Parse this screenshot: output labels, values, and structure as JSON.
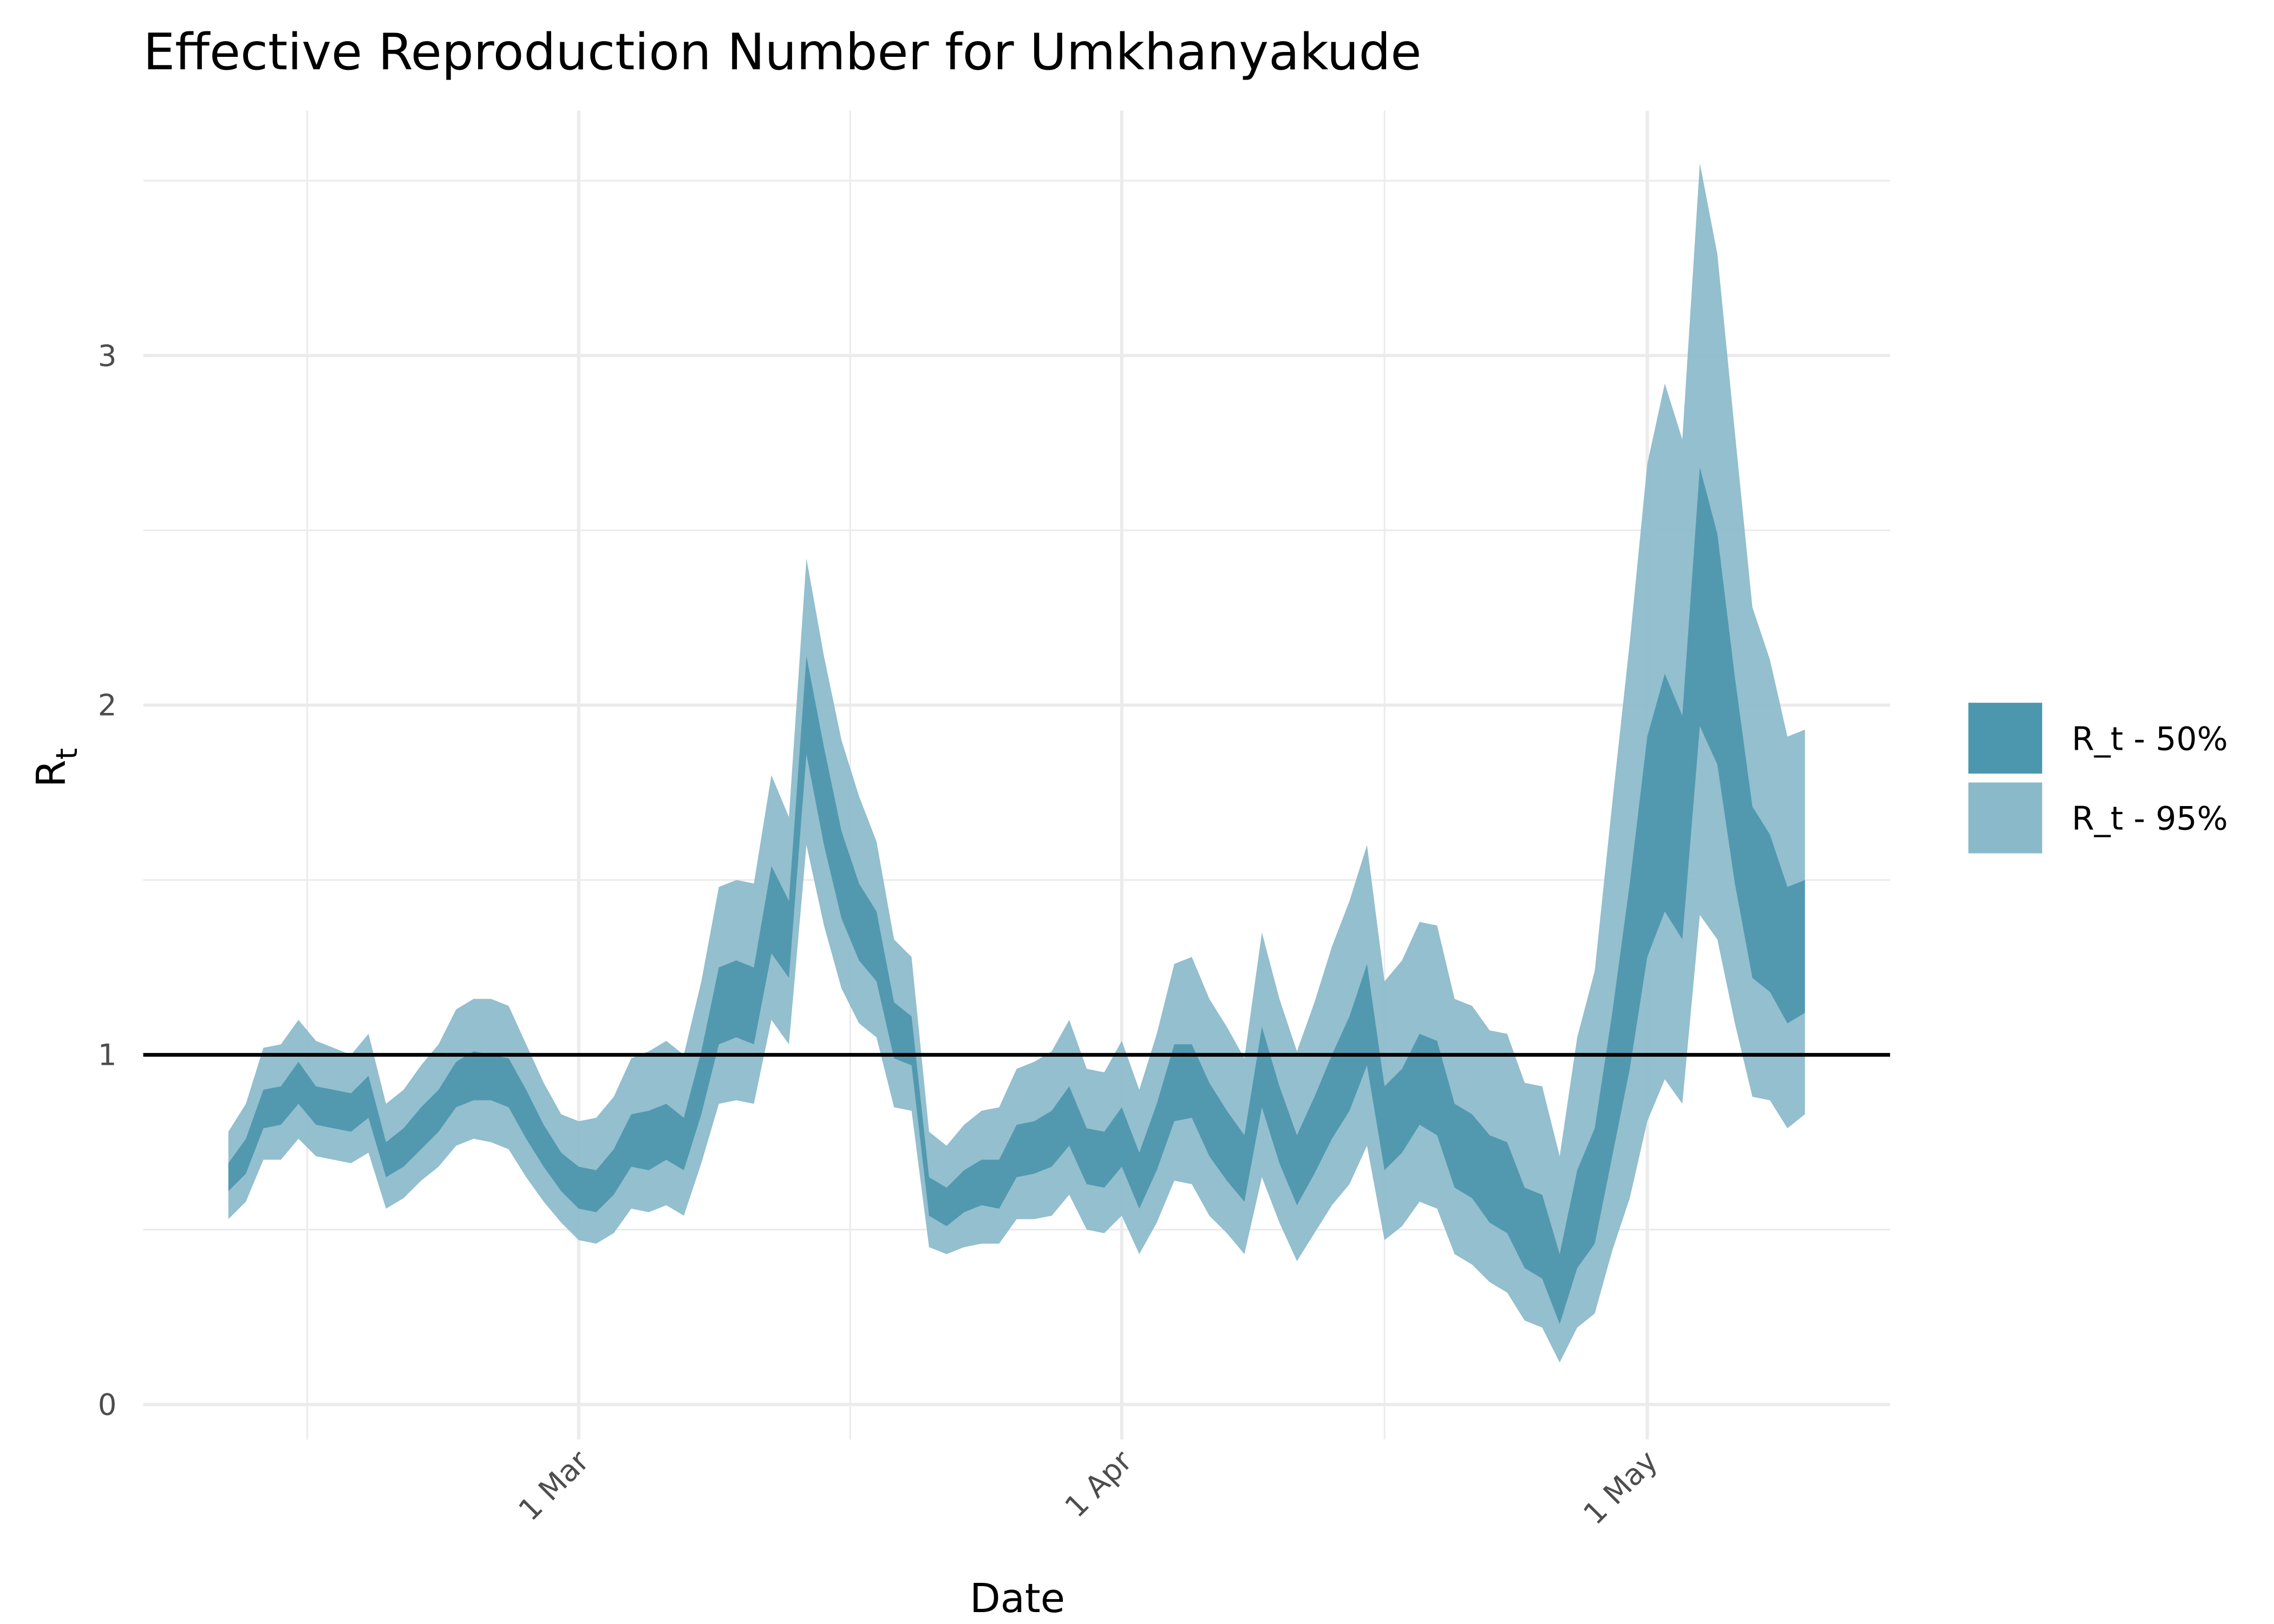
{
  "chart_data": {
    "type": "ribbon",
    "title": "Effective Reproduction Number for Umkhanyakude",
    "xlabel": "Date",
    "ylabel": "R",
    "ylabel_subscript": "t",
    "x": [
      "9 Feb",
      "10 Feb",
      "11 Feb",
      "12 Feb",
      "13 Feb",
      "14 Feb",
      "15 Feb",
      "16 Feb",
      "17 Feb",
      "18 Feb",
      "19 Feb",
      "20 Feb",
      "21 Feb",
      "22 Feb",
      "23 Feb",
      "24 Feb",
      "25 Feb",
      "26 Feb",
      "27 Feb",
      "28 Feb",
      "1 Mar",
      "2 Mar",
      "3 Mar",
      "4 Mar",
      "5 Mar",
      "6 Mar",
      "7 Mar",
      "8 Mar",
      "9 Mar",
      "10 Mar",
      "11 Mar",
      "12 Mar",
      "13 Mar",
      "14 Mar",
      "15 Mar",
      "16 Mar",
      "17 Mar",
      "18 Mar",
      "19 Mar",
      "20 Mar",
      "21 Mar",
      "22 Mar",
      "23 Mar",
      "24 Mar",
      "25 Mar",
      "26 Mar",
      "27 Mar",
      "28 Mar",
      "29 Mar",
      "30 Mar",
      "31 Mar",
      "1 Apr",
      "2 Apr",
      "3 Apr",
      "4 Apr",
      "5 Apr",
      "6 Apr",
      "7 Apr",
      "8 Apr",
      "9 Apr",
      "10 Apr",
      "11 Apr",
      "12 Apr",
      "13 Apr",
      "14 Apr",
      "15 Apr",
      "16 Apr",
      "17 Apr",
      "18 Apr",
      "19 Apr",
      "20 Apr",
      "21 Apr",
      "22 Apr",
      "23 Apr",
      "24 Apr",
      "25 Apr",
      "26 Apr",
      "27 Apr",
      "28 Apr",
      "29 Apr",
      "30 Apr",
      "1 May",
      "2 May",
      "3 May",
      "4 May",
      "5 May",
      "6 May",
      "7 May",
      "8 May",
      "9 May",
      "10 May"
    ],
    "xticks": [
      "1 Mar",
      "1 Apr",
      "1 May"
    ],
    "ylim": [
      -0.1,
      3.7
    ],
    "yticks": [
      0,
      1,
      2,
      3
    ],
    "grid": true,
    "hline": 1,
    "legend": "right",
    "series": [
      {
        "name": "R_t - 95%",
        "color": "#8abaca",
        "lower": [
          0.53,
          0.58,
          0.7,
          0.7,
          0.76,
          0.71,
          0.7,
          0.69,
          0.72,
          0.56,
          0.59,
          0.64,
          0.68,
          0.74,
          0.76,
          0.75,
          0.73,
          0.65,
          0.58,
          0.52,
          0.47,
          0.46,
          0.49,
          0.56,
          0.55,
          0.57,
          0.54,
          0.69,
          0.86,
          0.87,
          0.86,
          1.1,
          1.03,
          1.6,
          1.37,
          1.19,
          1.09,
          1.05,
          0.85,
          0.84,
          0.45,
          0.43,
          0.45,
          0.46,
          0.46,
          0.53,
          0.53,
          0.54,
          0.6,
          0.5,
          0.49,
          0.54,
          0.43,
          0.52,
          0.64,
          0.63,
          0.54,
          0.49,
          0.43,
          0.65,
          0.52,
          0.41,
          0.49,
          0.57,
          0.63,
          0.74,
          0.47,
          0.51,
          0.58,
          0.56,
          0.43,
          0.4,
          0.35,
          0.32,
          0.24,
          0.22,
          0.12,
          0.22,
          0.26,
          0.44,
          0.59,
          0.81,
          0.93,
          0.86,
          1.4,
          1.33,
          1.09,
          0.88,
          0.87,
          0.79,
          0.83
        ],
        "upper": [
          0.78,
          0.86,
          1.02,
          1.03,
          1.1,
          1.04,
          1.02,
          1.0,
          1.06,
          0.86,
          0.9,
          0.97,
          1.03,
          1.13,
          1.16,
          1.16,
          1.14,
          1.03,
          0.92,
          0.83,
          0.81,
          0.82,
          0.88,
          0.99,
          1.01,
          1.04,
          1.0,
          1.21,
          1.48,
          1.5,
          1.49,
          1.8,
          1.68,
          2.42,
          2.14,
          1.9,
          1.74,
          1.61,
          1.33,
          1.28,
          0.78,
          0.74,
          0.8,
          0.84,
          0.85,
          0.96,
          0.98,
          1.01,
          1.1,
          0.96,
          0.95,
          1.04,
          0.9,
          1.06,
          1.26,
          1.28,
          1.16,
          1.08,
          0.99,
          1.35,
          1.16,
          1.01,
          1.15,
          1.31,
          1.44,
          1.6,
          1.21,
          1.27,
          1.38,
          1.37,
          1.16,
          1.14,
          1.07,
          1.06,
          0.92,
          0.91,
          0.71,
          1.05,
          1.24,
          1.72,
          2.18,
          2.69,
          2.92,
          2.76,
          3.55,
          3.29,
          2.78,
          2.28,
          2.13,
          1.91,
          1.93
        ]
      },
      {
        "name": "R_t - 50%",
        "color": "#4c96ae",
        "lower": [
          0.61,
          0.66,
          0.79,
          0.8,
          0.86,
          0.8,
          0.79,
          0.78,
          0.82,
          0.65,
          0.68,
          0.73,
          0.78,
          0.85,
          0.87,
          0.87,
          0.85,
          0.76,
          0.68,
          0.61,
          0.56,
          0.55,
          0.6,
          0.68,
          0.67,
          0.7,
          0.67,
          0.83,
          1.03,
          1.05,
          1.03,
          1.29,
          1.22,
          1.86,
          1.6,
          1.39,
          1.27,
          1.21,
          0.99,
          0.97,
          0.54,
          0.51,
          0.55,
          0.57,
          0.56,
          0.65,
          0.66,
          0.68,
          0.74,
          0.63,
          0.62,
          0.68,
          0.56,
          0.67,
          0.81,
          0.82,
          0.71,
          0.64,
          0.58,
          0.85,
          0.69,
          0.57,
          0.66,
          0.76,
          0.84,
          0.97,
          0.67,
          0.72,
          0.8,
          0.77,
          0.62,
          0.59,
          0.52,
          0.49,
          0.39,
          0.36,
          0.23,
          0.39,
          0.46,
          0.71,
          0.96,
          1.28,
          1.41,
          1.33,
          1.94,
          1.83,
          1.49,
          1.22,
          1.18,
          1.09,
          1.12
        ],
        "upper": [
          0.69,
          0.76,
          0.9,
          0.91,
          0.98,
          0.91,
          0.9,
          0.89,
          0.94,
          0.75,
          0.79,
          0.85,
          0.9,
          0.98,
          1.01,
          1.0,
          0.99,
          0.9,
          0.8,
          0.72,
          0.68,
          0.67,
          0.73,
          0.83,
          0.84,
          0.86,
          0.82,
          1.01,
          1.25,
          1.27,
          1.25,
          1.54,
          1.44,
          2.14,
          1.88,
          1.64,
          1.49,
          1.41,
          1.15,
          1.11,
          0.65,
          0.62,
          0.67,
          0.7,
          0.7,
          0.8,
          0.81,
          0.84,
          0.91,
          0.79,
          0.78,
          0.85,
          0.72,
          0.86,
          1.03,
          1.03,
          0.92,
          0.84,
          0.77,
          1.08,
          0.91,
          0.77,
          0.88,
          1.0,
          1.11,
          1.26,
          0.91,
          0.96,
          1.06,
          1.04,
          0.86,
          0.83,
          0.77,
          0.75,
          0.62,
          0.6,
          0.43,
          0.67,
          0.79,
          1.12,
          1.49,
          1.91,
          2.09,
          1.97,
          2.68,
          2.49,
          2.08,
          1.71,
          1.63,
          1.48,
          1.5
        ]
      }
    ]
  }
}
